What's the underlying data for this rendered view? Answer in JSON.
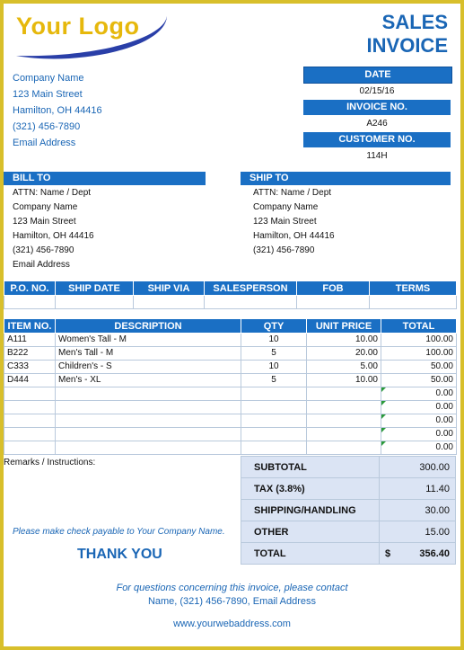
{
  "logo": {
    "text": "Your Logo"
  },
  "title": {
    "line1": "SALES",
    "line2": "INVOICE"
  },
  "company": {
    "name": "Company Name",
    "street": "123 Main Street",
    "city": "Hamilton, OH  44416",
    "phone": "(321) 456-7890",
    "email": "Email Address"
  },
  "meta": {
    "date_label": "DATE",
    "date_value": "02/15/16",
    "invoice_label": "INVOICE NO.",
    "invoice_value": "A246",
    "customer_label": "CUSTOMER NO.",
    "customer_value": "114H"
  },
  "bill_to": {
    "label": "BILL TO",
    "attn": "ATTN: Name / Dept",
    "company": "Company Name",
    "street": "123 Main Street",
    "city": "Hamilton, OH  44416",
    "phone": "(321) 456-7890",
    "email": "Email Address"
  },
  "ship_to": {
    "label": "SHIP TO",
    "attn": "ATTN: Name / Dept",
    "company": "Company Name",
    "street": "123 Main Street",
    "city": "Hamilton, OH  44416",
    "phone": "(321) 456-7890"
  },
  "shipping_headers": [
    "P.O. NO.",
    "SHIP DATE",
    "SHIP VIA",
    "SALESPERSON",
    "FOB",
    "TERMS"
  ],
  "items": {
    "headers": [
      "ITEM NO.",
      "DESCRIPTION",
      "QTY",
      "UNIT PRICE",
      "TOTAL"
    ],
    "rows": [
      {
        "item": "A111",
        "desc": "Women's Tall - M",
        "qty": "10",
        "price": "10.00",
        "total": "100.00"
      },
      {
        "item": "B222",
        "desc": "Men's Tall - M",
        "qty": "5",
        "price": "20.00",
        "total": "100.00"
      },
      {
        "item": "C333",
        "desc": "Children's - S",
        "qty": "10",
        "price": "5.00",
        "total": "50.00"
      },
      {
        "item": "D444",
        "desc": "Men's - XL",
        "qty": "5",
        "price": "10.00",
        "total": "50.00"
      },
      {
        "item": "",
        "desc": "",
        "qty": "",
        "price": "",
        "total": "0.00"
      },
      {
        "item": "",
        "desc": "",
        "qty": "",
        "price": "",
        "total": "0.00"
      },
      {
        "item": "",
        "desc": "",
        "qty": "",
        "price": "",
        "total": "0.00"
      },
      {
        "item": "",
        "desc": "",
        "qty": "",
        "price": "",
        "total": "0.00"
      },
      {
        "item": "",
        "desc": "",
        "qty": "",
        "price": "",
        "total": "0.00"
      }
    ]
  },
  "remarks_label": "Remarks / Instructions:",
  "totals": {
    "subtotal_label": "SUBTOTAL",
    "subtotal": "300.00",
    "tax_label": "TAX (3.8%)",
    "tax": "11.40",
    "shipping_label": "SHIPPING/HANDLING",
    "shipping": "30.00",
    "other_label": "OTHER",
    "other": "15.00",
    "total_label": "TOTAL",
    "currency": "$",
    "total": "356.40"
  },
  "payable_note": "Please make check payable to Your Company Name.",
  "thanks": "THANK YOU",
  "footer": {
    "line1": "For questions concerning this invoice, please contact",
    "line2": "Name, (321) 456-7890, Email Address",
    "web": "www.yourwebaddress.com"
  },
  "colors": {
    "accent": "#1a6fc4",
    "border": "#d8bf2b",
    "logo": "#e6b80c",
    "totals_bg": "#dbe4f4"
  }
}
